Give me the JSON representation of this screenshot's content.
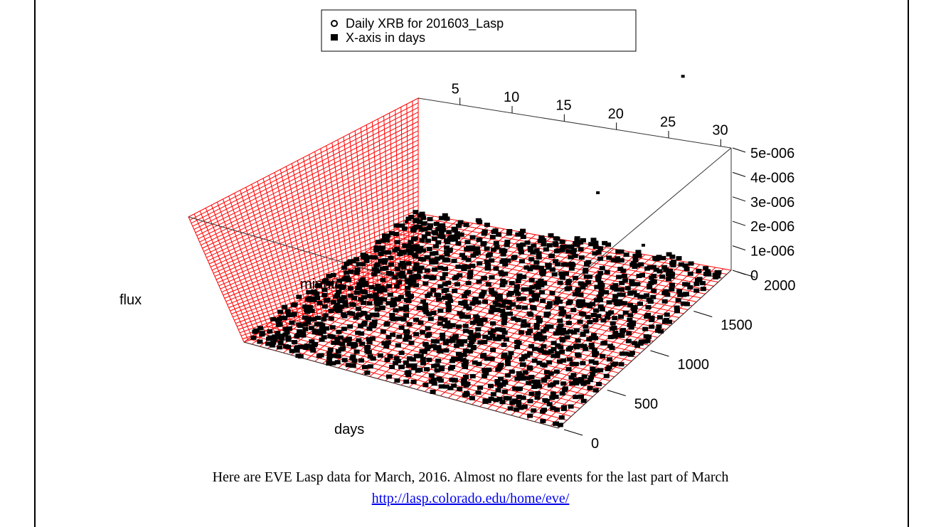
{
  "page": {
    "caption": "Here are EVE Lasp data for March, 2016.  Almost no flare events for the last part of March",
    "link_text": "http://lasp.colorado.edu/home/eve/"
  },
  "chart_data": {
    "type": "scatter3d",
    "legend": {
      "placement": "top-center",
      "entries": [
        {
          "label": "Daily XRB for 201603_Lasp",
          "marker": "open-circle"
        },
        {
          "label": "X-axis in days",
          "marker": "filled-square"
        }
      ]
    },
    "axes": {
      "x": {
        "label": "days",
        "range": [
          1,
          31
        ],
        "ticks": [
          5,
          10,
          15,
          20,
          25,
          30
        ]
      },
      "y": {
        "label": "minute",
        "range": [
          0,
          2000
        ],
        "ticks": [
          0,
          500,
          1000,
          1500,
          2000
        ]
      },
      "z": {
        "label": "flux",
        "range": [
          0,
          5e-06
        ],
        "ticks": [
          0,
          1e-06,
          2e-06,
          3e-06,
          4e-06,
          5e-06
        ],
        "tick_labels": [
          "0",
          "1e-006",
          "2e-006",
          "3e-006",
          "4e-006",
          "5e-006"
        ]
      }
    },
    "grid": true,
    "grid_color": "#ff0000",
    "point_color": "#000000",
    "outliers": [
      {
        "day": 21,
        "minute": 1900,
        "flux": 4.3e-06
      },
      {
        "day": 28,
        "minute": 1800,
        "flux": 3.9e-06
      },
      {
        "day": 24,
        "minute": 1300,
        "flux": 1.6e-06
      },
      {
        "day": 30,
        "minute": 1100,
        "flux": 1.1e-06
      },
      {
        "day": 9,
        "minute": 900,
        "flux": 1.2e-06
      }
    ]
  }
}
